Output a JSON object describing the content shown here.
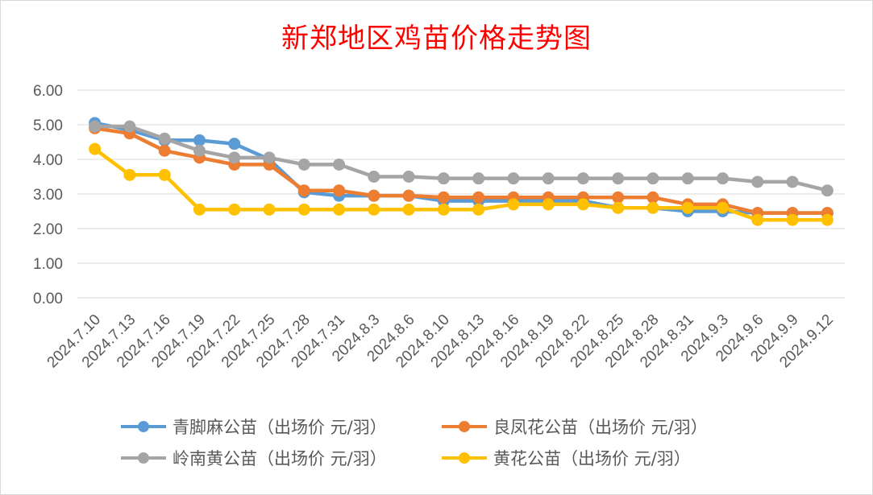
{
  "chart_data": {
    "type": "line",
    "title": "新郑地区鸡苗价格走势图",
    "categories": [
      "2024.7.10",
      "2024.7.13",
      "2024.7.16",
      "2024.7.19",
      "2024.7.22",
      "2024.7.25",
      "2024.7.28",
      "2024.7.31",
      "2024.8.3",
      "2024.8.6",
      "2024.8.10",
      "2024.8.13",
      "2024.8.16",
      "2024.8.19",
      "2024.8.22",
      "2024.8.25",
      "2024.8.28",
      "2024.8.31",
      "2024.9.3",
      "2024.9.6",
      "2024.9.9",
      "2024.9.12"
    ],
    "yticks": [
      "0.00",
      "1.00",
      "2.00",
      "3.00",
      "4.00",
      "5.00",
      "6.00"
    ],
    "ylim": [
      0,
      6
    ],
    "grid": true,
    "legend_position": "bottom",
    "series": [
      {
        "name": "青脚麻公苗（出场价 元/羽）",
        "color": "#5b9bd5",
        "values": [
          5.05,
          4.85,
          4.55,
          4.55,
          4.45,
          4.0,
          3.05,
          2.95,
          2.95,
          2.95,
          2.8,
          2.8,
          2.8,
          2.8,
          2.8,
          2.6,
          2.6,
          2.5,
          2.5,
          2.45,
          2.45,
          2.45
        ]
      },
      {
        "name": "良凤花公苗（出场价 元/羽）",
        "color": "#ed7d31",
        "values": [
          4.9,
          4.75,
          4.25,
          4.05,
          3.85,
          3.85,
          3.1,
          3.1,
          2.95,
          2.95,
          2.9,
          2.9,
          2.9,
          2.9,
          2.9,
          2.9,
          2.9,
          2.7,
          2.7,
          2.45,
          2.45,
          2.45
        ]
      },
      {
        "name": "岭南黄公苗（出场价 元/羽）",
        "color": "#a5a5a5",
        "values": [
          4.95,
          4.95,
          4.6,
          4.25,
          4.05,
          4.05,
          3.85,
          3.85,
          3.5,
          3.5,
          3.45,
          3.45,
          3.45,
          3.45,
          3.45,
          3.45,
          3.45,
          3.45,
          3.45,
          3.35,
          3.35,
          3.1
        ]
      },
      {
        "name": "黄花公苗（出场价 元/羽）",
        "color": "#ffc000",
        "values": [
          4.3,
          3.55,
          3.55,
          2.55,
          2.55,
          2.55,
          2.55,
          2.55,
          2.55,
          2.55,
          2.55,
          2.55,
          2.7,
          2.7,
          2.7,
          2.6,
          2.6,
          2.6,
          2.6,
          2.25,
          2.25,
          2.25
        ]
      }
    ]
  }
}
